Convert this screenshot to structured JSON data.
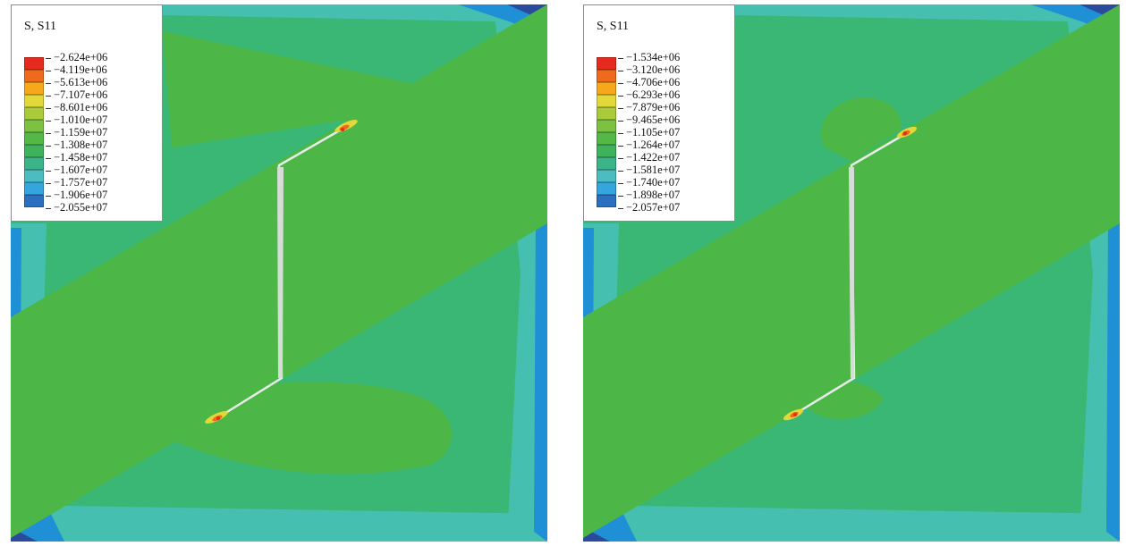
{
  "colors": {
    "background_field": "#3ab774",
    "band": "#4cb747",
    "edge_teal": "#45c0b0",
    "edge_blue": "#1f8fd6",
    "corner_dark": "#2a4b9b",
    "crack": "#e8ece8",
    "legend_scale": [
      "#e62b1e",
      "#ef6a1c",
      "#f7a71a",
      "#e3d83a",
      "#a9cb3b",
      "#7cc142",
      "#55b846",
      "#3fb35c",
      "#3bb487",
      "#4cbcc0",
      "#32a6dd",
      "#2b6fc1",
      "#27479e"
    ]
  },
  "panels": [
    {
      "legend": {
        "title": "S, S11",
        "values": [
          "−2.624e+06",
          "−4.119e+06",
          "−5.613e+06",
          "−7.107e+06",
          "−8.601e+06",
          "−1.010e+07",
          "−1.159e+07",
          "−1.308e+07",
          "−1.458e+07",
          "−1.607e+07",
          "−1.757e+07",
          "−1.906e+07",
          "−2.055e+07"
        ]
      }
    },
    {
      "legend": {
        "title": "S, S11",
        "values": [
          "−1.534e+06",
          "−3.120e+06",
          "−4.706e+06",
          "−6.293e+06",
          "−7.879e+06",
          "−9.465e+06",
          "−1.105e+07",
          "−1.264e+07",
          "−1.422e+07",
          "−1.581e+07",
          "−1.740e+07",
          "−1.898e+07",
          "−2.057e+07"
        ]
      }
    }
  ]
}
